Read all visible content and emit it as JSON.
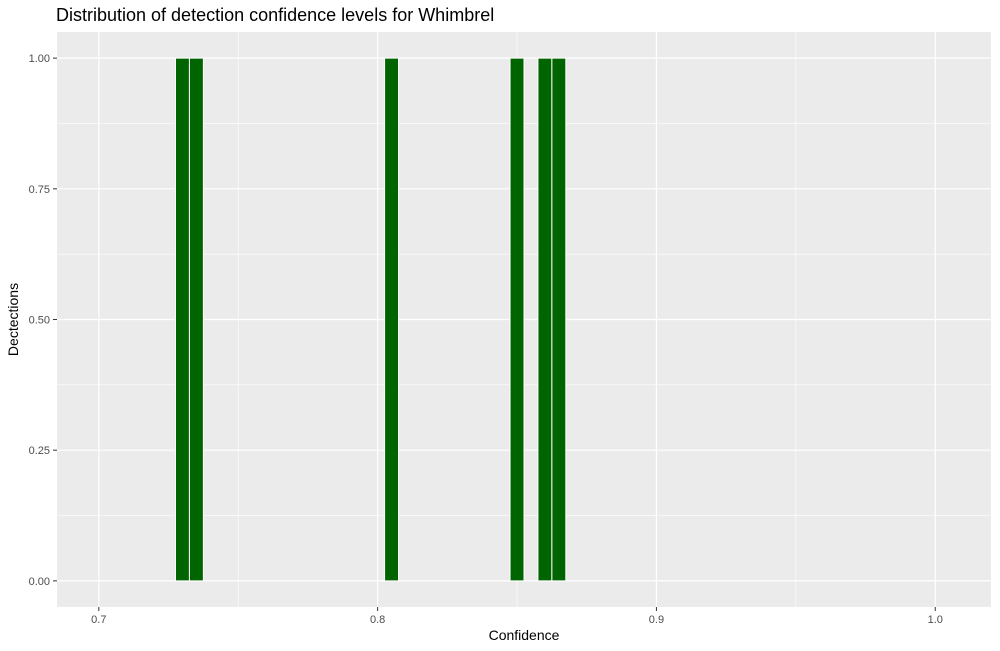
{
  "chart_data": {
    "type": "bar",
    "title": "Distribution of detection confidence levels for Whimbrel",
    "xlabel": "Confidence",
    "ylabel": "Dectections",
    "xlim": [
      0.685,
      1.02
    ],
    "ylim": [
      -0.05,
      1.05
    ],
    "x_ticks": [
      0.7,
      0.8,
      0.9,
      1.0
    ],
    "x_tick_labels": [
      "0.7",
      "0.8",
      "0.9",
      "1.0"
    ],
    "y_ticks": [
      0.0,
      0.25,
      0.5,
      0.75,
      1.0
    ],
    "y_tick_labels": [
      "0.00",
      "0.25",
      "0.50",
      "0.75",
      "1.00"
    ],
    "bin_width": 0.005,
    "bars": [
      {
        "x": 0.73,
        "value": 1
      },
      {
        "x": 0.735,
        "value": 1
      },
      {
        "x": 0.805,
        "value": 1
      },
      {
        "x": 0.85,
        "value": 1
      },
      {
        "x": 0.86,
        "value": 1
      },
      {
        "x": 0.865,
        "value": 1
      }
    ],
    "bar_color": "#006400",
    "panel_background": "#ebebeb",
    "grid": true,
    "legend": "none"
  }
}
